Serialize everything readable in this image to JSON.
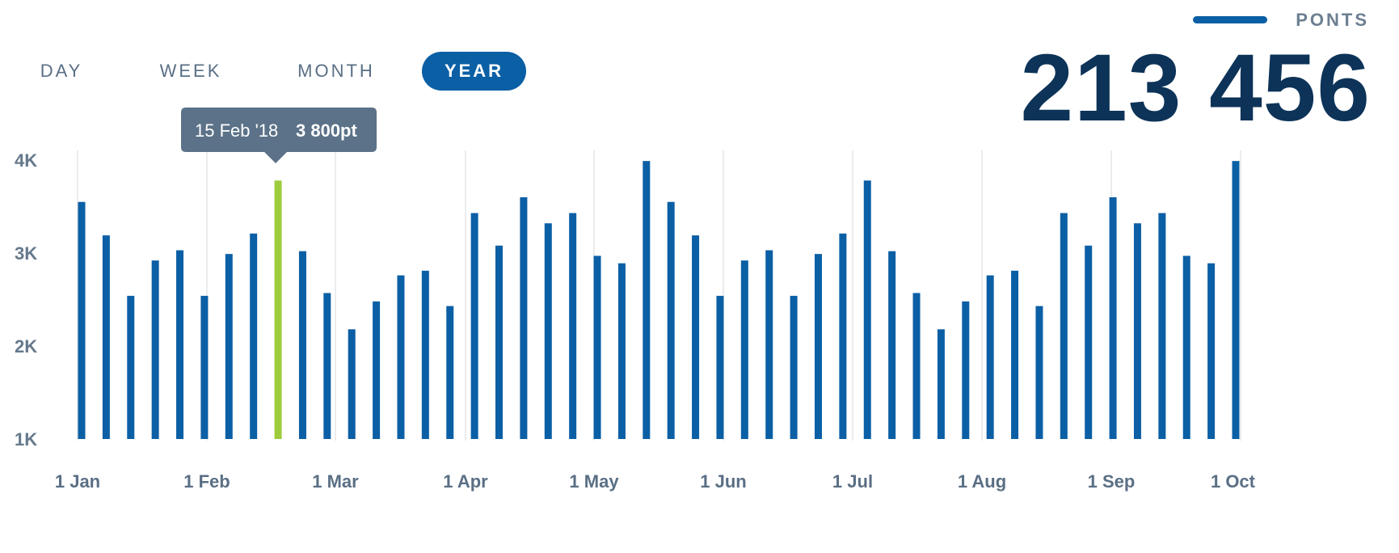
{
  "tabs": [
    {
      "label": "DAY",
      "active": false
    },
    {
      "label": "WEEK",
      "active": false
    },
    {
      "label": "MONTH",
      "active": false
    },
    {
      "label": "YEAR",
      "active": true
    }
  ],
  "legend": {
    "label": "PONTS",
    "color": "#0b5fa5"
  },
  "total": "213 456",
  "tooltip": {
    "date": "15 Feb '18",
    "value": "3 800pt"
  },
  "colors": {
    "bar": "#0b5fa5",
    "highlight": "#9ccc3c",
    "grid": "#e3e5e8",
    "tooltip": "#5b7288"
  },
  "chart_data": {
    "type": "bar",
    "series": [
      {
        "name": "PONTS",
        "values": [
          3550,
          3190,
          2540,
          2920,
          3030,
          2540,
          2990,
          3210,
          3780,
          3020,
          2570,
          2180,
          2480,
          2760,
          2810,
          2430,
          3430,
          3080,
          3600,
          3320,
          3430,
          2970,
          2890,
          3990,
          3550,
          3190,
          2540,
          2920,
          3030,
          2540,
          2990,
          3210,
          3780,
          3020,
          2570,
          2180,
          2480,
          2760,
          2810,
          2430,
          3430,
          3080,
          3600,
          3320,
          3430,
          2970,
          2890,
          3990
        ]
      }
    ],
    "highlight_index": 8,
    "ylim": [
      1000,
      4000
    ],
    "y_ticks": [
      "1K",
      "2K",
      "3K",
      "4K"
    ],
    "x_ticks": [
      "1 Jan",
      "1 Feb",
      "1 Mar",
      "1 Apr",
      "1 May",
      "1 Jun",
      "1 Jul",
      "1 Aug",
      "1 Sep",
      "1 Oct"
    ],
    "grid": true
  }
}
